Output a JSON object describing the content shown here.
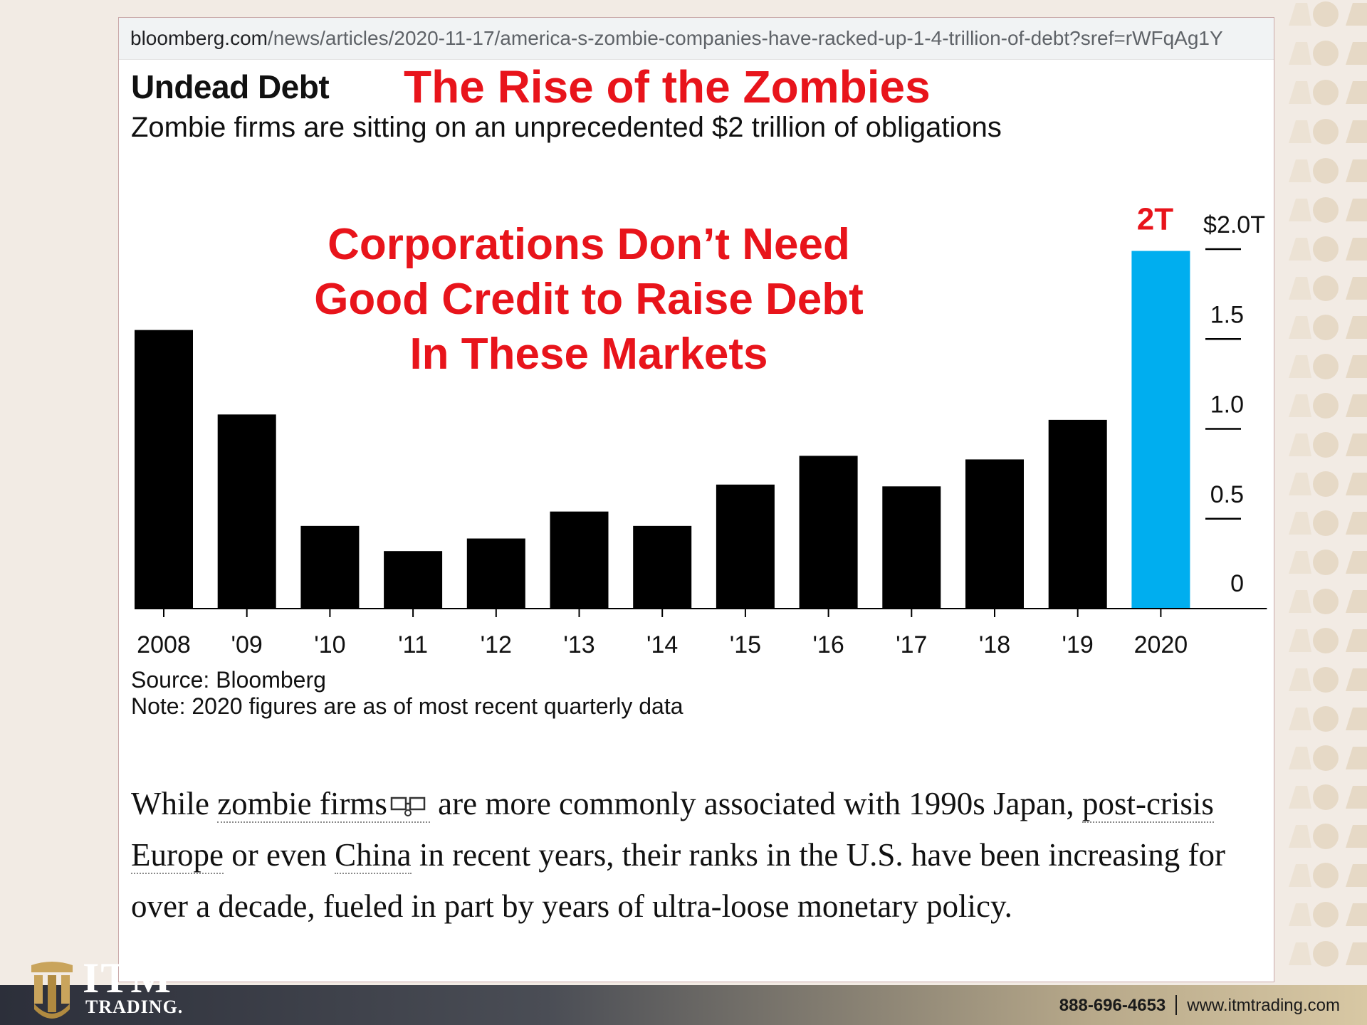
{
  "browser": {
    "url_domain": "bloomberg.com",
    "url_path": "/news/articles/2020-11-17/america-s-zombie-companies-have-racked-up-1-4-trillion-of-debt?sref=rWFqAg1Y"
  },
  "overlay": {
    "title": "The Rise of the Zombies",
    "message_lines": [
      "Corporations Don’t Need",
      "Good Credit to Raise Debt",
      "In These Markets"
    ],
    "highlight_label": "2T",
    "color": "#e8141b"
  },
  "chart_data": {
    "type": "bar",
    "title": "Undead Debt",
    "subtitle": "Zombie firms are sitting on an unprecedented $2 trillion of obligations",
    "categories": [
      "2008",
      "'09",
      "'10",
      "'11",
      "'12",
      "'13",
      "'14",
      "'15",
      "'16",
      "'17",
      "'18",
      "'19",
      "2020"
    ],
    "values": [
      1.55,
      1.08,
      0.46,
      0.32,
      0.39,
      0.54,
      0.46,
      0.69,
      0.85,
      0.68,
      0.83,
      1.05,
      1.99
    ],
    "bar_colors": [
      "#000000",
      "#000000",
      "#000000",
      "#000000",
      "#000000",
      "#000000",
      "#000000",
      "#000000",
      "#000000",
      "#000000",
      "#000000",
      "#000000",
      "#00aeef"
    ],
    "ylim": [
      0,
      2.0
    ],
    "y_ticks": [
      0,
      0.5,
      1.0,
      1.5,
      2.0
    ],
    "y_tick_labels": [
      "0",
      "0.5",
      "1.0",
      "1.5",
      "$2.0T"
    ],
    "y_axis_side": "right",
    "grid": false,
    "xlabel": "",
    "ylabel": ""
  },
  "source": {
    "line1": "Source: Bloomberg",
    "line2": "Note: 2020 figures are as of most recent quarterly data"
  },
  "article": {
    "p1": "While ",
    "link1": "zombie firms",
    "p2": " are more commonly associated with 1990s Japan, ",
    "link2": "post-crisis Europe",
    "p3": " or even ",
    "link3": "China",
    "p4": " in recent years, their ranks in the U.S. have been increasing for over a decade, fueled in part by years of ultra-loose monetary policy."
  },
  "footer": {
    "phone": "888-696-4653",
    "website": "www.itmtrading.com",
    "logo_top": "ITM",
    "logo_bottom": "TRADING."
  }
}
